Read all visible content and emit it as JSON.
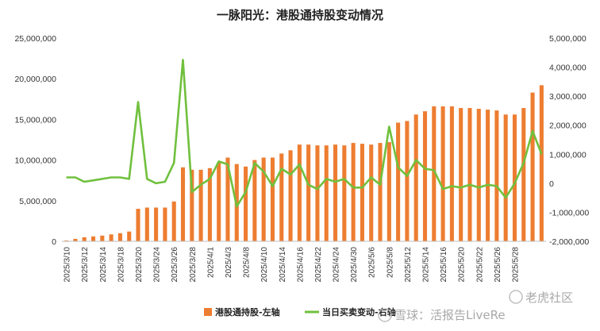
{
  "chart_data": {
    "type": "bar+line",
    "title": "一脉阳光：港股通持股变动情况",
    "dates": [
      "2025/3/10",
      "2025/3/11",
      "2025/3/12",
      "2025/3/13",
      "2025/3/14",
      "2025/3/17",
      "2025/3/18",
      "2025/3/19",
      "2025/3/20",
      "2025/3/21",
      "2025/3/24",
      "2025/3/25",
      "2025/3/26",
      "2025/3/27",
      "2025/3/28",
      "2025/3/31",
      "2025/4/1",
      "2025/4/2",
      "2025/4/3",
      "2025/4/7",
      "2025/4/8",
      "2025/4/9",
      "2025/4/10",
      "2025/4/11",
      "2025/4/14",
      "2025/4/15",
      "2025/4/16",
      "2025/4/17",
      "2025/4/22",
      "2025/4/23",
      "2025/4/24",
      "2025/4/25",
      "2025/4/28",
      "2025/4/29",
      "2025/4/30",
      "2025/5/2",
      "2025/5/6",
      "2025/5/7",
      "2025/5/8",
      "2025/5/9",
      "2025/5/12",
      "2025/5/13",
      "2025/5/14",
      "2025/5/15",
      "2025/5/16",
      "2025/5/19",
      "2025/5/20",
      "2025/5/21",
      "2025/5/22",
      "2025/5/23",
      "2025/5/26",
      "2025/5/27",
      "2025/5/28",
      "2025/5/29"
    ],
    "x_tick_labels": [
      "2025/3/10",
      "2025/3/12",
      "2025/3/14",
      "2025/3/18",
      "2025/3/20",
      "2025/3/24",
      "2025/3/26",
      "2025/3/28",
      "2025/4/1",
      "2025/4/3",
      "2025/4/8",
      "2025/4/10",
      "2025/4/14",
      "2025/4/16",
      "2025/4/22",
      "2025/4/24",
      "2025/4/30",
      "2025/5/6",
      "2025/5/8",
      "2025/5/12",
      "2025/5/14",
      "2025/5/16",
      "2025/5/20",
      "2025/5/22",
      "2025/5/26",
      "2025/5/28"
    ],
    "x_tick_every": 2,
    "series": [
      {
        "name": "港股通持股-左轴",
        "type": "bar",
        "axis": "left",
        "color": "#ED7D31",
        "values": [
          100000,
          300000,
          500000,
          600000,
          700000,
          850000,
          1000000,
          1200000,
          4000000,
          4150000,
          4150000,
          4150000,
          4900000,
          9100000,
          8800000,
          8800000,
          9000000,
          9700000,
          10300000,
          9500000,
          9200000,
          10000000,
          10300000,
          10300000,
          10800000,
          11200000,
          11900000,
          11900000,
          11800000,
          11800000,
          11900000,
          11800000,
          12100000,
          12000000,
          11900000,
          12100000,
          12200000,
          14600000,
          14800000,
          15600000,
          16000000,
          16600000,
          16600000,
          16600000,
          16400000,
          16400000,
          16300000,
          16200000,
          16100000,
          15600000,
          15600000,
          16400000,
          18300000,
          19200000
        ]
      },
      {
        "name": "当日买卖变动-右轴",
        "type": "line",
        "axis": "right",
        "color": "#70C03D",
        "values": [
          200000,
          200000,
          50000,
          100000,
          150000,
          200000,
          200000,
          150000,
          2800000,
          150000,
          0,
          50000,
          700000,
          4250000,
          -300000,
          -50000,
          150000,
          750000,
          650000,
          -800000,
          -300000,
          700000,
          400000,
          -100000,
          500000,
          300000,
          650000,
          -50000,
          -200000,
          150000,
          50000,
          150000,
          -150000,
          -150000,
          200000,
          -50000,
          1950000,
          550000,
          250000,
          800000,
          500000,
          450000,
          -200000,
          -100000,
          -150000,
          -50000,
          -150000,
          -50000,
          -100000,
          -500000,
          0,
          700000,
          1800000,
          1000000
        ]
      }
    ],
    "y_left": {
      "min": 0,
      "max": 25000000,
      "step": 5000000,
      "tick_labels": [
        "0",
        "5,000,000",
        "10,000,000",
        "15,000,000",
        "20,000,000",
        "25,000,000"
      ]
    },
    "y_right": {
      "min": -2000000,
      "max": 5000000,
      "step": 1000000,
      "tick_labels": [
        "-2,000,000",
        "-1,000,000",
        "0",
        "1,000,000",
        "2,000,000",
        "3,000,000",
        "4,000,000",
        "5,000,000"
      ]
    },
    "legend": {
      "placement": "bottom",
      "items": [
        "港股通持股-左轴",
        "当日买卖变动-右轴"
      ]
    },
    "grid": false
  },
  "watermark": {
    "text1": "雪球：活报告LiveRe",
    "text2": "老虎社区"
  }
}
